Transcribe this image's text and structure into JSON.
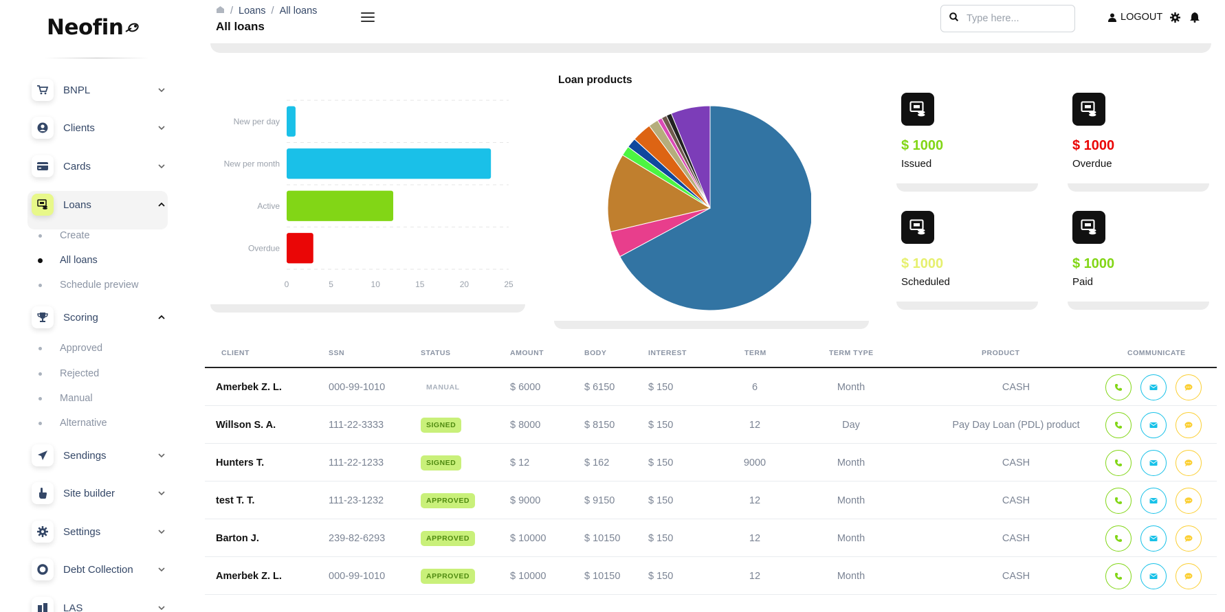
{
  "brand": {
    "name": "Neofin"
  },
  "sidebar": {
    "items": [
      {
        "label": "BNPL",
        "icon": "cart-icon"
      },
      {
        "label": "Clients",
        "icon": "user-circle-icon"
      },
      {
        "label": "Cards",
        "icon": "credit-card-icon"
      },
      {
        "label": "Loans",
        "icon": "loans-icon",
        "active": true
      },
      {
        "label": "Scoring",
        "icon": "trophy-icon"
      },
      {
        "label": "Sendings",
        "icon": "paper-plane-icon"
      },
      {
        "label": "Site builder",
        "icon": "hand-pointer-icon"
      },
      {
        "label": "Settings",
        "icon": "gear-icon"
      },
      {
        "label": "Debt Collection",
        "icon": "lifebuoy-icon"
      },
      {
        "label": "LAS",
        "icon": "las-icon"
      }
    ],
    "loans_sub": [
      {
        "label": "Create"
      },
      {
        "label": "All loans",
        "active": true
      },
      {
        "label": "Schedule preview"
      }
    ],
    "scoring_sub": [
      {
        "label": "Approved"
      },
      {
        "label": "Rejected"
      },
      {
        "label": "Manual"
      },
      {
        "label": "Alternative"
      }
    ]
  },
  "header": {
    "breadcrumb": [
      "Loans",
      "All loans"
    ],
    "title": "All loans",
    "search_placeholder": "Type here...",
    "logout_label": "LOGOUT"
  },
  "chart_data": [
    {
      "type": "bar",
      "orientation": "horizontal",
      "categories": [
        "New per day",
        "New per month",
        "Active",
        "Overdue"
      ],
      "values": [
        1,
        23,
        12,
        3
      ],
      "colors": [
        "#1ac0e8",
        "#1ac0e8",
        "#82d616",
        "#ea0606"
      ],
      "xlim": [
        0,
        25
      ],
      "xticks": [
        0,
        5,
        10,
        15,
        20,
        25
      ]
    },
    {
      "type": "pie",
      "title": "Loan products",
      "values": [
        65,
        4,
        12,
        1.5,
        1.5,
        3,
        1.5,
        0.7,
        0.8,
        0.8,
        6
      ],
      "colors": [
        "#3274a3",
        "#e83e8c",
        "#c07f2e",
        "#4cf542",
        "#10489e",
        "#dd6413",
        "#b5ad7c",
        "#da4ab6",
        "#6f5a4e",
        "#222222",
        "#7c3db8"
      ]
    }
  ],
  "stats": [
    {
      "value": "$ 1000",
      "label": "Issued",
      "color": "#82d616"
    },
    {
      "value": "$ 1000",
      "label": "Overdue",
      "color": "#ea0606"
    },
    {
      "value": "$ 1000",
      "label": "Scheduled",
      "color": "#e6f06e"
    },
    {
      "value": "$ 1000",
      "label": "Paid",
      "color": "#82d616"
    }
  ],
  "table": {
    "headers": [
      "CLIENT",
      "SSN",
      "STATUS",
      "AMOUNT",
      "BODY",
      "INTEREST",
      "TERM",
      "TERM TYPE",
      "PRODUCT",
      "COMMUNICATE"
    ],
    "rows": [
      {
        "client": "Amerbek Z. L.",
        "ssn": "000-99-1010",
        "status": "MANUAL",
        "amount": "$ 6000",
        "body": "$ 6150",
        "interest": "$ 150",
        "term": "6",
        "term_type": "Month",
        "product": "CASH"
      },
      {
        "client": "Willson S. A.",
        "ssn": "111-22-3333",
        "status": "SIGNED",
        "amount": "$ 8000",
        "body": "$ 8150",
        "interest": "$ 150",
        "term": "12",
        "term_type": "Day",
        "product": "Pay Day Loan (PDL) product"
      },
      {
        "client": "Hunters T.",
        "ssn": "111-22-1233",
        "status": "SIGNED",
        "amount": "$ 12",
        "body": "$ 162",
        "interest": "$ 150",
        "term": "9000",
        "term_type": "Month",
        "product": "CASH"
      },
      {
        "client": "test T. T.",
        "ssn": "111-23-1232",
        "status": "APPROVED",
        "amount": "$ 9000",
        "body": "$ 9150",
        "interest": "$ 150",
        "term": "12",
        "term_type": "Month",
        "product": "CASH"
      },
      {
        "client": "Barton J.",
        "ssn": "239-82-6293",
        "status": "APPROVED",
        "amount": "$ 10000",
        "body": "$ 10150",
        "interest": "$ 150",
        "term": "12",
        "term_type": "Month",
        "product": "CASH"
      },
      {
        "client": "Amerbek Z. L.",
        "ssn": "000-99-1010",
        "status": "APPROVED",
        "amount": "$ 10000",
        "body": "$ 10150",
        "interest": "$ 150",
        "term": "12",
        "term_type": "Month",
        "product": "CASH"
      }
    ]
  }
}
